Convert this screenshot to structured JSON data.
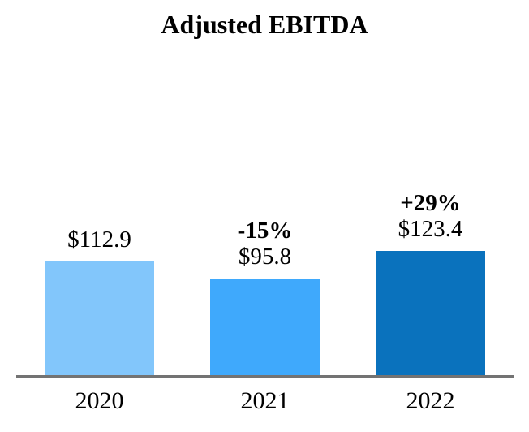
{
  "chart_data": {
    "type": "bar",
    "title": "Adjusted EBITDA",
    "categories": [
      "2020",
      "2021",
      "2022"
    ],
    "values": [
      112.9,
      95.8,
      123.4
    ],
    "value_labels": [
      "$112.9",
      "$95.8",
      "$123.4"
    ],
    "pct_change_labels": [
      "",
      "-15%",
      "+29%"
    ],
    "bar_colors": [
      "#82C6FB",
      "#3FA9FC",
      "#0A72BD"
    ],
    "xlabel": "",
    "ylabel": "",
    "ylim": [
      0,
      130
    ],
    "grid": false,
    "legend": false,
    "axis_line_color": "#737373",
    "background_color": "#ffffff",
    "text_color": "#000000"
  }
}
